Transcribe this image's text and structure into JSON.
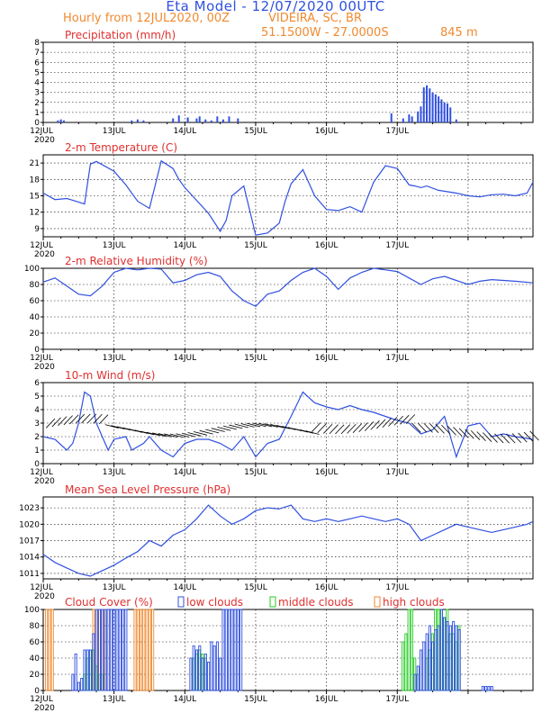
{
  "header": {
    "title": "Eta Model - 12/07/2020 00UTC",
    "subtitle_left": "Hourly from 12JUL2020, 00Z",
    "location": "VIDEIRA, SC, BR",
    "coords": "51.1500W - 27.0000S",
    "elevation": "845  m"
  },
  "colors": {
    "line": "#3050e0",
    "title": "#e03030",
    "orange": "#f08a30",
    "green": "#22cc22"
  },
  "date_labels": [
    "12JUL",
    "13JUL",
    "14JUL",
    "15JUL",
    "16JUL",
    "17JUL"
  ],
  "year_label": "2020",
  "chart_data": [
    {
      "type": "bar",
      "title": "Precipitation (mm/h)",
      "ylim": [
        0,
        8
      ],
      "yticks": [
        "0",
        "1",
        "2",
        "3",
        "4",
        "5",
        "6",
        "7",
        "8"
      ],
      "hours": [
        5,
        6,
        7,
        30,
        32,
        34,
        44,
        46,
        49,
        49,
        52,
        53,
        55,
        57,
        59,
        63,
        61,
        66,
        118,
        122,
        124,
        125,
        127,
        128,
        129,
        130,
        131,
        132,
        133,
        134,
        135,
        136,
        137,
        138,
        140
      ],
      "values": [
        0.2,
        0.3,
        0.2,
        0.2,
        0.3,
        0.2,
        0.4,
        0.7,
        0.4,
        0.5,
        0.4,
        0.6,
        0.3,
        0.2,
        0.6,
        0.6,
        0.3,
        0.4,
        0.9,
        0.4,
        0.8,
        0.6,
        1.1,
        1.6,
        3.5,
        3.7,
        3.4,
        3.0,
        2.8,
        2.6,
        2.3,
        2.0,
        1.9,
        1.5,
        0.3
      ]
    },
    {
      "type": "line",
      "title": "2-m Temperature (C)",
      "ylim": [
        7.5,
        22.5
      ],
      "yticks": [
        "9",
        "12",
        "15",
        "18",
        "21"
      ],
      "x": [
        0,
        4,
        8,
        10,
        14,
        16,
        18,
        24,
        28,
        32,
        36,
        40,
        44,
        46,
        48,
        56,
        60,
        62,
        64,
        68,
        72,
        76,
        80,
        82,
        84,
        88,
        92,
        96,
        100,
        104,
        108,
        112,
        116,
        120,
        124,
        126,
        128,
        130,
        134,
        140,
        144,
        148,
        152,
        156,
        160,
        164,
        166
      ],
      "values": [
        15.5,
        14.3,
        14.5,
        14.2,
        13.5,
        20.8,
        21.3,
        19.5,
        17.0,
        14.0,
        12.7,
        21.4,
        20.0,
        18.0,
        16.5,
        11.8,
        8.5,
        10.5,
        15.0,
        16.8,
        7.8,
        8.2,
        10.0,
        14.0,
        17.2,
        19.8,
        15.0,
        12.5,
        12.3,
        13.0,
        12.0,
        17.5,
        20.5,
        20.0,
        17.0,
        16.8,
        16.5,
        16.8,
        16.0,
        15.5,
        15.0,
        14.8,
        15.2,
        15.3,
        15.0,
        15.5,
        17.5
      ]
    },
    {
      "type": "line",
      "title": "2-m Relative Humidity (%)",
      "ylim": [
        0,
        100
      ],
      "yticks": [
        "0",
        "20",
        "40",
        "60",
        "80",
        "100"
      ],
      "x": [
        0,
        4,
        8,
        12,
        16,
        20,
        24,
        28,
        32,
        36,
        40,
        44,
        48,
        52,
        56,
        60,
        64,
        68,
        72,
        76,
        80,
        84,
        88,
        92,
        96,
        100,
        104,
        108,
        112,
        116,
        120,
        124,
        128,
        132,
        136,
        140,
        144,
        148,
        152,
        156,
        160,
        166
      ],
      "values": [
        83,
        88,
        78,
        68,
        66,
        78,
        95,
        100,
        98,
        100,
        99,
        82,
        85,
        92,
        95,
        90,
        72,
        60,
        53,
        68,
        72,
        85,
        95,
        100,
        90,
        74,
        88,
        95,
        100,
        98,
        96,
        88,
        80,
        87,
        90,
        85,
        80,
        84,
        86,
        85,
        84,
        82
      ]
    },
    {
      "type": "line",
      "title": "10-m Wind (m/s)",
      "ylim": [
        0,
        6
      ],
      "yticks": [
        "0",
        "1",
        "2",
        "3",
        "4",
        "5",
        "6"
      ],
      "x": [
        0,
        4,
        8,
        10,
        12,
        14,
        16,
        18,
        22,
        24,
        28,
        30,
        34,
        36,
        38,
        40,
        44,
        48,
        52,
        56,
        60,
        64,
        68,
        72,
        76,
        80,
        84,
        88,
        92,
        96,
        100,
        104,
        108,
        112,
        116,
        120,
        124,
        128,
        132,
        136,
        140,
        144,
        148,
        152,
        156,
        160,
        166
      ],
      "values": [
        2.0,
        1.8,
        1.0,
        1.5,
        3.0,
        5.3,
        5.0,
        3.0,
        1.0,
        1.8,
        2.0,
        1.0,
        1.5,
        2.0,
        1.5,
        1.0,
        0.5,
        1.5,
        1.8,
        1.8,
        1.5,
        1.0,
        2.0,
        0.5,
        1.5,
        1.8,
        3.5,
        5.3,
        4.5,
        4.2,
        4.0,
        4.3,
        4.0,
        3.8,
        3.5,
        3.2,
        3.0,
        2.2,
        2.5,
        3.5,
        0.5,
        2.8,
        3.0,
        2.0,
        2.2,
        2.0,
        1.8
      ]
    },
    {
      "type": "line",
      "title": "Mean Sea Level Pressure (hPa)",
      "ylim": [
        1010,
        1025
      ],
      "yticks": [
        "1011",
        "1014",
        "1017",
        "1020",
        "1023"
      ],
      "x": [
        0,
        4,
        8,
        12,
        16,
        20,
        24,
        28,
        32,
        36,
        40,
        44,
        48,
        52,
        56,
        60,
        64,
        68,
        72,
        76,
        80,
        84,
        88,
        92,
        96,
        100,
        104,
        108,
        112,
        116,
        120,
        124,
        128,
        132,
        136,
        140,
        144,
        148,
        152,
        156,
        160,
        164,
        166
      ],
      "values": [
        1014.5,
        1013.0,
        1012.0,
        1011.0,
        1010.5,
        1011.5,
        1012.5,
        1013.8,
        1015.0,
        1017.0,
        1016.0,
        1018.0,
        1019.0,
        1021.0,
        1023.5,
        1021.5,
        1020.0,
        1021.0,
        1022.5,
        1023.0,
        1022.8,
        1023.5,
        1021.0,
        1020.5,
        1021.0,
        1020.5,
        1021.0,
        1021.5,
        1021.0,
        1020.5,
        1021.0,
        1020.0,
        1017.0,
        1018.0,
        1019.0,
        1020.0,
        1019.5,
        1019.0,
        1018.5,
        1019.0,
        1019.5,
        1020.0,
        1020.5
      ]
    },
    {
      "type": "bar",
      "title": "Cloud Cover (%)",
      "ylim": [
        0,
        100
      ],
      "yticks": [
        "0",
        "20",
        "40",
        "60",
        "80",
        "100"
      ],
      "legend": [
        "low clouds",
        "middle clouds",
        "high clouds"
      ],
      "high_clouds": {
        "hours": [
          1,
          2,
          3,
          17,
          18,
          19,
          20,
          21,
          31,
          32,
          33,
          34,
          35,
          36,
          37
        ],
        "values": [
          100,
          100,
          100,
          100,
          100,
          100,
          100,
          100,
          100,
          100,
          100,
          100,
          100,
          100,
          100
        ]
      },
      "middle_clouds": {
        "hours": [
          14,
          15,
          16,
          17,
          18,
          19,
          20,
          51,
          52,
          53,
          54,
          55,
          122,
          123,
          124,
          125,
          126,
          127,
          130,
          131,
          132,
          133,
          134,
          135,
          136,
          137,
          138,
          139,
          140,
          141
        ],
        "values": [
          20,
          40,
          50,
          50,
          30,
          20,
          20,
          40,
          45,
          50,
          45,
          40,
          60,
          70,
          100,
          100,
          40,
          20,
          40,
          50,
          70,
          100,
          100,
          100,
          90,
          100,
          70,
          70,
          60,
          80
        ]
      },
      "low_clouds": {
        "hours": [
          10,
          11,
          12,
          13,
          14,
          15,
          16,
          17,
          18,
          19,
          20,
          21,
          22,
          23,
          24,
          25,
          26,
          27,
          28,
          50,
          51,
          52,
          53,
          54,
          55,
          56,
          57,
          58,
          59,
          60,
          61,
          62,
          63,
          64,
          65,
          66,
          67,
          126,
          127,
          128,
          129,
          130,
          131,
          132,
          133,
          134,
          135,
          136,
          137,
          138,
          139,
          140,
          141,
          149,
          150,
          151,
          152
        ],
        "values": [
          20,
          45,
          10,
          15,
          50,
          50,
          50,
          70,
          100,
          100,
          100,
          100,
          100,
          100,
          100,
          100,
          100,
          100,
          100,
          40,
          55,
          50,
          55,
          40,
          45,
          35,
          60,
          55,
          60,
          40,
          100,
          100,
          100,
          100,
          100,
          100,
          100,
          20,
          30,
          50,
          60,
          70,
          80,
          60,
          75,
          80,
          100,
          90,
          85,
          80,
          85,
          80,
          75,
          5,
          5,
          5,
          5
        ]
      }
    }
  ]
}
